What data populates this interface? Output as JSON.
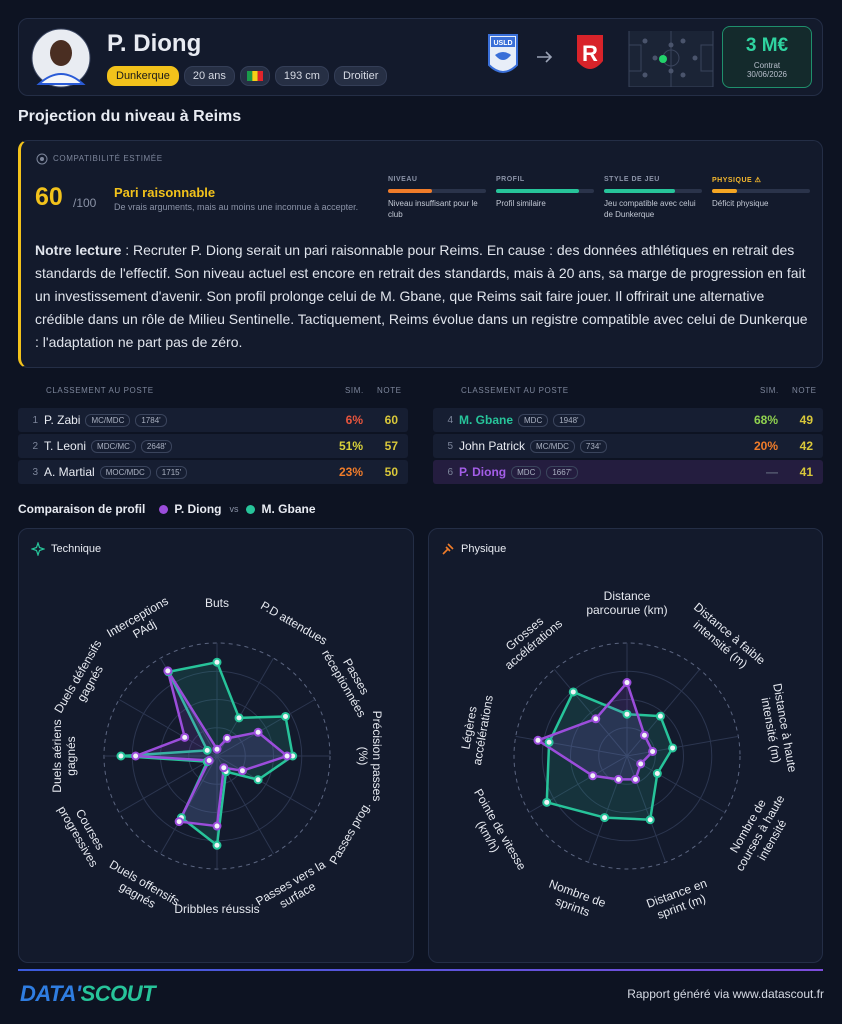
{
  "header": {
    "name": "P. Diong",
    "club": "Dunkerque",
    "age": "20 ans",
    "height": "193 cm",
    "foot": "Droitier",
    "transfer_value": "3 M€",
    "contract_label": "Contrat",
    "contract_date": "30/06/2026"
  },
  "section_title": "Projection du niveau à Reims",
  "compatibility": {
    "label": "COMPATIBILITÉ ESTIMÉE",
    "score": 60,
    "score_max": "/100",
    "verdict": "Pari raisonnable",
    "verdict_detail": "De vrais arguments, mais au moins une inconnue à accepter.",
    "criteria": [
      {
        "label": "NIVEAU",
        "label_color": "#8b93a7",
        "level": 45,
        "color": "#f07c2a",
        "description": "Niveau insuffisant pour le club"
      },
      {
        "label": "PROFIL",
        "label_color": "#8b93a7",
        "level": 85,
        "color": "#27c49a",
        "description": "Profil similaire"
      },
      {
        "label": "STYLE DE JEU",
        "label_color": "#8b93a7",
        "level": 72,
        "color": "#27c49a",
        "description": "Jeu compatible avec celui de Dunkerque"
      },
      {
        "label": "PHYSIQUE ⚠",
        "label_color": "#f5b82e",
        "level": 25,
        "color": "#f5a623",
        "description": "Déficit physique"
      }
    ],
    "reading_lead": "Notre lecture",
    "reading_text": ": Recruter P. Diong serait un pari raisonnable pour Reims. En cause : des données athlétiques en retrait des standards de l'effectif. Son niveau actuel est encore en retrait des standards, mais à 20 ans, sa marge de progression en fait un investissement d'avenir. Son profil prolonge celui de M. Gbane, que Reims sait faire jouer. Il offrirait une alternative crédible dans un rôle de Milieu Sentinelle. Tactiquement, Reims évolue dans un registre compatible avec celui de Dunkerque : l'adaptation ne part pas de zéro."
  },
  "ranking": {
    "header": "CLASSEMENT AU POSTE",
    "sim_header": "SIM.",
    "note_header": "NOTE",
    "rows": [
      {
        "rank": 1,
        "name": "P. Zabi",
        "position": "MC/MDC",
        "rating": "1784'",
        "sim": "6%",
        "sim_color": "#e8553d",
        "note": 60,
        "name_color": "#e8ebf2",
        "background": "#161e32"
      },
      {
        "rank": 2,
        "name": "T. Leoni",
        "position": "MDC/MC",
        "rating": "2648'",
        "sim": "51%",
        "sim_color": "#d9d23a",
        "note": 57,
        "name_color": "#e8ebf2",
        "background": "#161e32"
      },
      {
        "rank": 3,
        "name": "A. Martial",
        "position": "MOC/MDC",
        "rating": "1715'",
        "sim": "23%",
        "sim_color": "#f07c2a",
        "note": 50,
        "name_color": "#e8ebf2",
        "background": "#161e32"
      },
      {
        "rank": 4,
        "name": "M. Gbane",
        "position": "MDC",
        "rating": "1948'",
        "sim": "68%",
        "sim_color": "#8fd14f",
        "note": 49,
        "name_color": "#27c49a",
        "background": "#161e32"
      },
      {
        "rank": 5,
        "name": "John Patrick",
        "position": "MC/MDC",
        "rating": "734'",
        "sim": "20%",
        "sim_color": "#f07c2a",
        "note": 42,
        "name_color": "#e8ebf2",
        "background": "#161e32"
      },
      {
        "rank": 6,
        "name": "P. Diong",
        "position": "MDC",
        "rating": "1667'",
        "sim": "—",
        "sim_color": "#5d6478",
        "note": 41,
        "name_color": "#a45ee8",
        "background": "#241d3f"
      }
    ]
  },
  "comparison": {
    "title": "Comparaison de profil",
    "vs": "vs"
  },
  "chart_data": [
    {
      "type": "radar",
      "title": "Technique",
      "rlim": [
        0,
        100
      ],
      "rticks": [
        25,
        50,
        75,
        100
      ],
      "axes": [
        "Buts",
        "P.D attendues",
        "Passes réceptionnées",
        "Précision passes (%)",
        "Passes prog.",
        "Passes vers la surface",
        "Dribbles réussis",
        "Duels offensifs gagnés",
        "Courses progressives",
        "Duels aériens gagnés",
        "Duels défensifs gagnés",
        "Interceptions PAdj"
      ],
      "series": [
        {
          "name": "P. Diong",
          "color": "#9b4ddb",
          "values": [
            6,
            18,
            42,
            62,
            26,
            12,
            62,
            67,
            8,
            72,
            33,
            87
          ]
        },
        {
          "name": "M. Gbane",
          "color": "#27c49a",
          "values": [
            83,
            39,
            70,
            67,
            42,
            16,
            79,
            63,
            10,
            85,
            10,
            86
          ]
        }
      ]
    },
    {
      "type": "radar",
      "title": "Physique",
      "rlim": [
        0,
        100
      ],
      "rticks": [
        25,
        50,
        75,
        100
      ],
      "axes": [
        "Distance parcourue (km)",
        "Distance à faible intensité (m)",
        "Distance à haute intensité (m)",
        "Nombre de courses à haute intensité",
        "Distance en sprint (m)",
        "Nombre de sprints",
        "Pointe de vitesse (km/h)",
        "Légères accélérations",
        "Grosses accélérations"
      ],
      "series": [
        {
          "color": "#9b4ddb",
          "values": [
            65,
            24,
            23,
            14,
            22,
            22,
            35,
            80,
            43
          ]
        },
        {
          "color": "#27c49a",
          "values": [
            37,
            46,
            41,
            31,
            60,
            58,
            82,
            70,
            74
          ]
        }
      ]
    }
  ],
  "footer": {
    "logo_a": "DATA'",
    "logo_b": "SCOUT",
    "credit": "Rapport généré via www.datascout.fr"
  }
}
